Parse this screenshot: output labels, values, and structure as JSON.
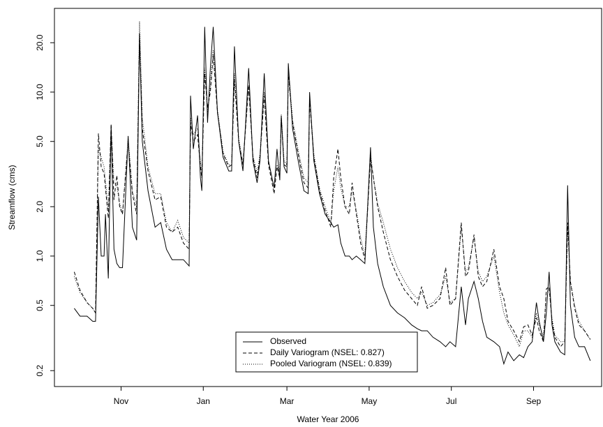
{
  "chart_data": {
    "type": "line",
    "xlabel": "Water Year 2006",
    "ylabel": "Streamflow (cms)",
    "log_y": true,
    "legend": "bottom",
    "xlim": [
      -13,
      373
    ],
    "ylim": [
      0.16,
      32.4
    ],
    "xticks": [
      {
        "value": 34,
        "label": "Nov"
      },
      {
        "value": 92,
        "label": "Jan"
      },
      {
        "value": 151,
        "label": "Mar"
      },
      {
        "value": 209,
        "label": "May"
      },
      {
        "value": 267,
        "label": "Jul"
      },
      {
        "value": 325,
        "label": "Sep"
      }
    ],
    "yticks": [
      {
        "value": 0.2,
        "label": "0.2"
      },
      0.5,
      {
        "value": 1,
        "label": "1.0"
      },
      {
        "value": 2,
        "label": "2.0"
      },
      {
        "value": 5,
        "label": "5.0"
      },
      {
        "value": 10,
        "label": "10.0"
      },
      {
        "value": 20,
        "label": "20.0"
      }
    ],
    "x": [
      1,
      5,
      10,
      14,
      16,
      18,
      20,
      22,
      23,
      25,
      27,
      29,
      31,
      33,
      35,
      39,
      42,
      45,
      47,
      49,
      53,
      58,
      62,
      66,
      70,
      74,
      78,
      82,
      83,
      85,
      88,
      90,
      91,
      93,
      95,
      97,
      99,
      102,
      106,
      110,
      112,
      114,
      117,
      120,
      124,
      127,
      130,
      132,
      135,
      138,
      142,
      144,
      146,
      147,
      149,
      151,
      152,
      155,
      159,
      163,
      166,
      167,
      170,
      174,
      178,
      182,
      184,
      187,
      189,
      192,
      195,
      197,
      200,
      203,
      206,
      210,
      212,
      215,
      219,
      224,
      229,
      234,
      239,
      243,
      246,
      250,
      254,
      259,
      263,
      266,
      270,
      274,
      277,
      279,
      283,
      286,
      289,
      292,
      297,
      301,
      304,
      307,
      311,
      315,
      318,
      321,
      324,
      327,
      329,
      332,
      334,
      336,
      338,
      340,
      344,
      347,
      349,
      351,
      354,
      357,
      361,
      365
    ],
    "series": [
      {
        "name": "Observed",
        "color": "#000000",
        "dash": "solid",
        "values": [
          0.48,
          0.43,
          0.43,
          0.4,
          0.4,
          2.3,
          1.0,
          1.0,
          1.8,
          0.73,
          6.2,
          1.1,
          0.9,
          0.85,
          0.85,
          5.4,
          1.5,
          1.25,
          22,
          5.0,
          2.5,
          1.5,
          1.6,
          1.1,
          0.95,
          0.95,
          0.95,
          0.87,
          9.5,
          4.5,
          7.2,
          3.0,
          2.5,
          25,
          6.5,
          14,
          25,
          7.5,
          4.0,
          3.3,
          3.3,
          19,
          5.0,
          3.3,
          14,
          3.8,
          2.8,
          3.8,
          13,
          3.8,
          2.6,
          4.5,
          2.9,
          7.2,
          3.5,
          3.2,
          15,
          6.0,
          3.8,
          2.5,
          2.4,
          10,
          3.8,
          2.4,
          1.8,
          1.6,
          1.5,
          1.55,
          1.2,
          1.0,
          1.0,
          0.95,
          1.0,
          0.95,
          0.9,
          4.6,
          1.5,
          0.9,
          0.65,
          0.5,
          0.45,
          0.42,
          0.38,
          0.36,
          0.35,
          0.35,
          0.32,
          0.3,
          0.28,
          0.3,
          0.28,
          0.65,
          0.38,
          0.55,
          0.7,
          0.55,
          0.4,
          0.32,
          0.3,
          0.28,
          0.22,
          0.26,
          0.23,
          0.25,
          0.24,
          0.28,
          0.3,
          0.52,
          0.4,
          0.3,
          0.45,
          0.8,
          0.38,
          0.3,
          0.26,
          0.25,
          2.7,
          0.5,
          0.32,
          0.28,
          0.28,
          0.23
        ]
      },
      {
        "name": "Daily Variogram (NSEL: 0.827)",
        "color": "#000000",
        "dash": "dashed",
        "values": [
          0.8,
          0.62,
          0.52,
          0.48,
          0.45,
          5.6,
          3.5,
          3.2,
          2.6,
          1.7,
          6.4,
          2.2,
          3.1,
          2.0,
          1.8,
          5.0,
          2.4,
          1.8,
          23,
          6.0,
          3.3,
          2.2,
          2.3,
          1.5,
          1.4,
          1.5,
          1.2,
          1.1,
          6.5,
          5.0,
          5.5,
          3.5,
          3.0,
          13,
          8.0,
          10,
          17,
          7.5,
          4.2,
          3.5,
          3.6,
          12,
          5.0,
          3.6,
          11,
          4.0,
          3.0,
          4.0,
          9.5,
          3.6,
          2.4,
          3.5,
          3.0,
          7.0,
          3.6,
          3.5,
          13,
          6.5,
          4.2,
          2.8,
          2.6,
          9.0,
          4.0,
          2.5,
          1.9,
          1.5,
          3.0,
          4.5,
          3.0,
          2.0,
          1.8,
          2.8,
          1.8,
          1.2,
          0.95,
          4.0,
          3.0,
          2.0,
          1.4,
          0.95,
          0.75,
          0.62,
          0.55,
          0.5,
          0.65,
          0.48,
          0.5,
          0.55,
          0.85,
          0.5,
          0.55,
          1.6,
          0.75,
          0.8,
          1.35,
          0.75,
          0.65,
          0.7,
          1.1,
          0.65,
          0.55,
          0.4,
          0.35,
          0.3,
          0.37,
          0.38,
          0.33,
          0.42,
          0.35,
          0.3,
          0.63,
          0.65,
          0.4,
          0.32,
          0.28,
          0.3,
          1.6,
          0.7,
          0.48,
          0.38,
          0.35,
          0.31
        ]
      },
      {
        "name": "Pooled Variogram (NSEL: 0.839)",
        "color": "#000000",
        "dash": "dotted",
        "values": [
          0.75,
          0.6,
          0.52,
          0.48,
          0.45,
          4.6,
          4.0,
          3.5,
          2.9,
          1.9,
          6.2,
          2.8,
          2.7,
          2.1,
          1.8,
          5.2,
          2.5,
          2.0,
          27,
          7.0,
          3.5,
          2.4,
          2.4,
          1.6,
          1.4,
          1.65,
          1.3,
          1.2,
          7.0,
          5.5,
          6.0,
          3.8,
          3.2,
          14,
          7.5,
          11,
          18,
          7.8,
          4.3,
          3.6,
          3.6,
          13,
          5.2,
          3.7,
          11,
          4.1,
          3.2,
          4.2,
          10,
          3.8,
          2.6,
          3.6,
          3.2,
          7.3,
          3.8,
          3.6,
          14,
          6.8,
          4.4,
          3.0,
          2.8,
          9.5,
          4.2,
          2.6,
          2.0,
          1.6,
          2.5,
          3.5,
          2.6,
          2.0,
          2.0,
          2.5,
          1.9,
          1.3,
          1.0,
          4.2,
          3.0,
          2.1,
          1.6,
          1.1,
          0.85,
          0.7,
          0.6,
          0.55,
          0.6,
          0.5,
          0.52,
          0.58,
          0.75,
          0.52,
          0.55,
          1.5,
          0.8,
          0.85,
          1.3,
          0.8,
          0.7,
          0.75,
          1.0,
          0.6,
          0.45,
          0.38,
          0.33,
          0.28,
          0.35,
          0.35,
          0.32,
          0.45,
          0.38,
          0.32,
          0.6,
          0.62,
          0.42,
          0.33,
          0.3,
          0.3,
          1.5,
          0.7,
          0.5,
          0.4,
          0.35,
          0.31
        ]
      }
    ]
  }
}
